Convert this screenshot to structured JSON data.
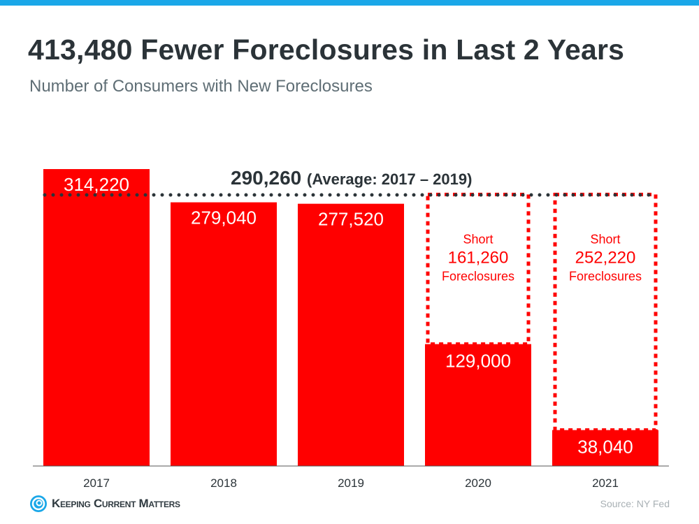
{
  "title": "413,480 Fewer Foreclosures in Last 2 Years",
  "subtitle": "Number of Consumers with New Foreclosures",
  "source": "Source: NY Fed",
  "logo_text": "Keeping Current Matters",
  "colors": {
    "bar": "#ff0000",
    "accent": "#1aa7e8",
    "text": "#2b3338",
    "average_line": "#2b3338"
  },
  "chart_data": {
    "type": "bar",
    "categories": [
      "2017",
      "2018",
      "2019",
      "2020",
      "2021"
    ],
    "values": [
      314220,
      279040,
      277520,
      129000,
      38040
    ],
    "value_labels": [
      "314,220",
      "279,040",
      "277,520",
      "129,000",
      "38,040"
    ],
    "average": {
      "value": 290260,
      "label_value": "290,260",
      "label_text": "(Average: 2017 – 2019)"
    },
    "shortfalls": [
      {
        "category": "2020",
        "value": 161260,
        "label_top": "Short",
        "label_value": "161,260",
        "label_bottom": "Foreclosures"
      },
      {
        "category": "2021",
        "value": 252220,
        "label_top": "Short",
        "label_value": "252,220",
        "label_bottom": "Foreclosures"
      }
    ],
    "ylim": [
      0,
      314220
    ],
    "grid": false
  }
}
